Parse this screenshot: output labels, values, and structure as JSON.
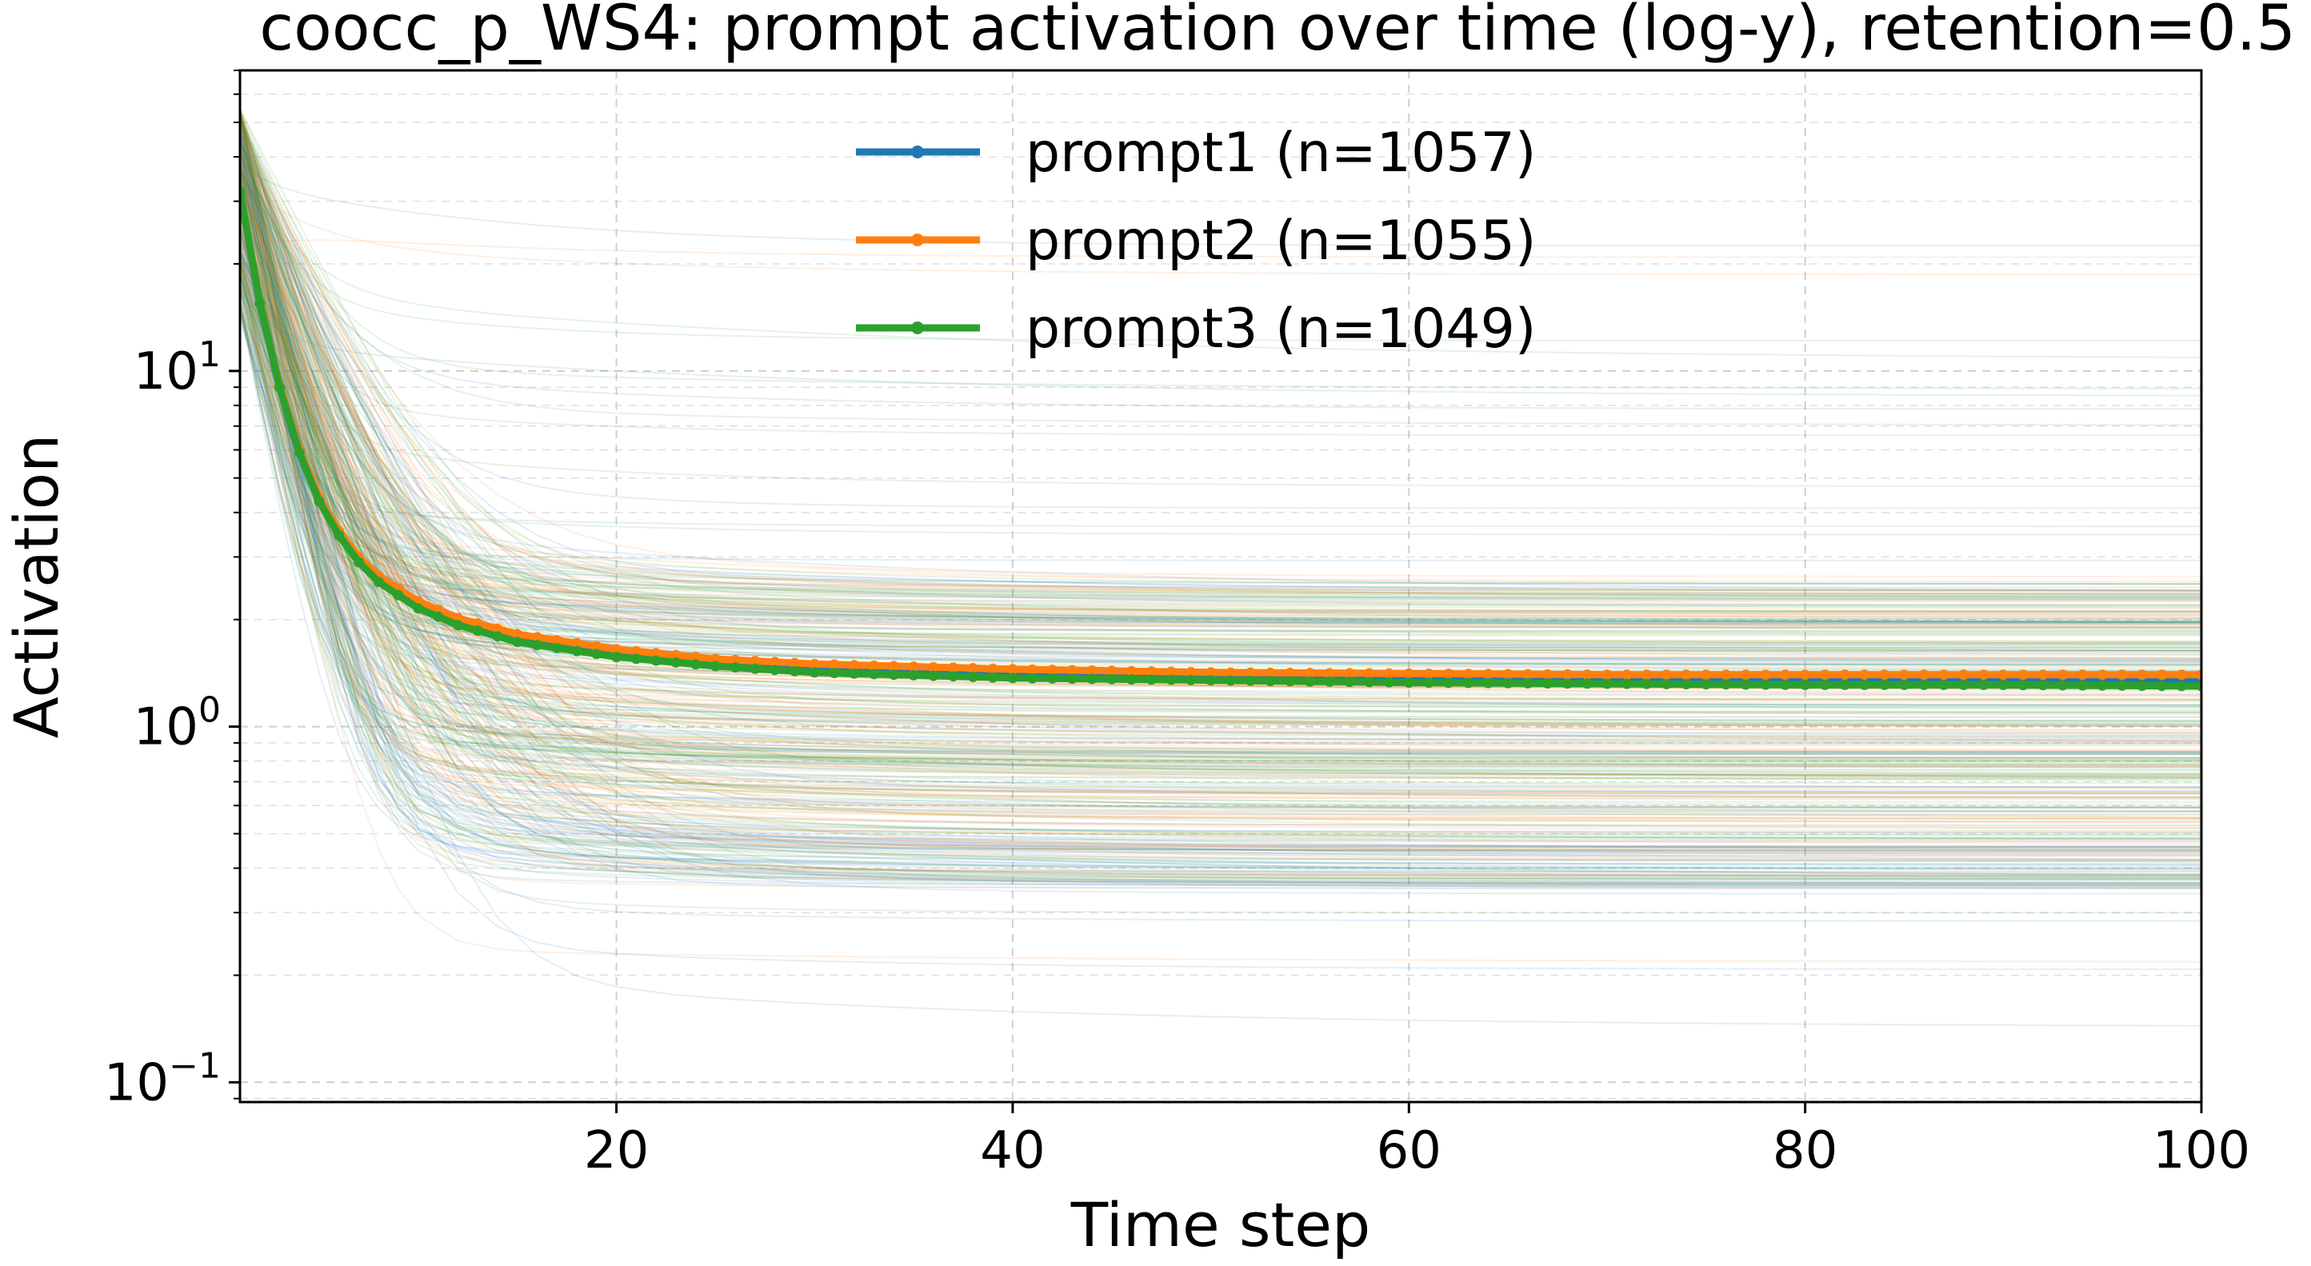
{
  "chart_data": {
    "type": "line",
    "title": "coocc_p_WS4: prompt activation over time (log-y), retention=0.5",
    "xlabel": "Time step",
    "ylabel": "Activation",
    "xlim": [
      1,
      100
    ],
    "ylim": [
      0.088,
      70
    ],
    "yscale": "log",
    "grid": true,
    "legend_position": "top-center",
    "x_ticks": [
      20,
      40,
      60,
      80,
      100
    ],
    "x_tick_labels": [
      "20",
      "40",
      "60",
      "80",
      "100"
    ],
    "y_ticks": [
      0.1,
      1,
      10
    ],
    "y_tick_labels": [
      {
        "base": "10",
        "exp": "−1"
      },
      {
        "base": "10",
        "exp": "0"
      },
      {
        "base": "10",
        "exp": "1"
      }
    ],
    "series": [
      {
        "name": "prompt1 (n=1057)",
        "color": "#1f77b4",
        "x": [
          1,
          2,
          3,
          4,
          5,
          6,
          7,
          8,
          10,
          12,
          15,
          20,
          25,
          30,
          40,
          50,
          60,
          70,
          80,
          90,
          100
        ],
        "values": [
          32,
          15.5,
          9.1,
          6.0,
          4.4,
          3.5,
          2.95,
          2.6,
          2.2,
          1.97,
          1.77,
          1.6,
          1.5,
          1.45,
          1.4,
          1.38,
          1.36,
          1.35,
          1.35,
          1.34,
          1.34
        ]
      },
      {
        "name": "prompt2 (n=1055)",
        "color": "#ff7f0e",
        "x": [
          1,
          2,
          3,
          4,
          5,
          6,
          7,
          8,
          10,
          12,
          15,
          20,
          25,
          30,
          40,
          50,
          60,
          70,
          80,
          90,
          100
        ],
        "values": [
          32,
          15.5,
          9.1,
          6.0,
          4.4,
          3.55,
          3.0,
          2.65,
          2.25,
          2.02,
          1.82,
          1.65,
          1.55,
          1.5,
          1.45,
          1.42,
          1.41,
          1.4,
          1.4,
          1.4,
          1.4
        ]
      },
      {
        "name": "prompt3 (n=1049)",
        "color": "#2ca02c",
        "x": [
          1,
          2,
          3,
          4,
          5,
          6,
          7,
          8,
          10,
          12,
          15,
          20,
          25,
          30,
          40,
          50,
          60,
          70,
          80,
          90,
          100
        ],
        "values": [
          32,
          15.5,
          9.0,
          5.9,
          4.3,
          3.45,
          2.9,
          2.55,
          2.15,
          1.93,
          1.73,
          1.57,
          1.48,
          1.42,
          1.37,
          1.35,
          1.33,
          1.32,
          1.31,
          1.31,
          1.3
        ]
      }
    ],
    "background_traces": {
      "per_series_counts": [
        1057,
        1055,
        1049
      ],
      "start_value_range": [
        14,
        55
      ],
      "final_value_range": [
        0.12,
        28
      ],
      "alpha": 0.12
    }
  }
}
